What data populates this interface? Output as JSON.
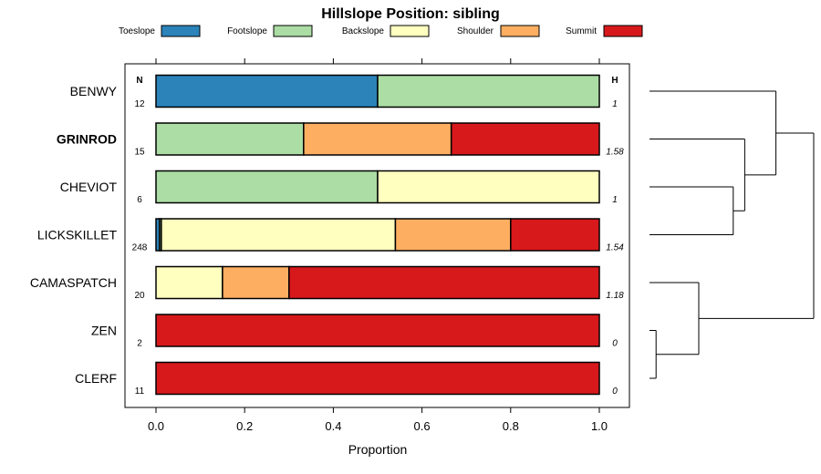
{
  "chart_data": {
    "type": "bar",
    "orientation": "horizontal",
    "stacked": true,
    "title": "Hillslope Position: sibling",
    "xlabel": "Proportion",
    "xlim": [
      0,
      1
    ],
    "x_ticks": [
      "0.0",
      "0.2",
      "0.4",
      "0.6",
      "0.8",
      "1.0"
    ],
    "n_header": "N",
    "h_header": "H",
    "legend_position": "top",
    "series": [
      {
        "name": "Toeslope",
        "color": "#2B83BA"
      },
      {
        "name": "Footslope",
        "color": "#ABDDA4"
      },
      {
        "name": "Backslope",
        "color": "#FFFFBF"
      },
      {
        "name": "Shoulder",
        "color": "#FDAE61"
      },
      {
        "name": "Summit",
        "color": "#D7191C"
      }
    ],
    "categories": [
      {
        "label": "BENWY",
        "bold": false,
        "n": "12",
        "h": "1",
        "values": [
          0.5,
          0.5,
          0,
          0,
          0
        ]
      },
      {
        "label": "GRINROD",
        "bold": true,
        "n": "15",
        "h": "1.58",
        "values": [
          0,
          0.333,
          0,
          0.333,
          0.334
        ]
      },
      {
        "label": "CHEVIOT",
        "bold": false,
        "n": "6",
        "h": "1",
        "values": [
          0,
          0.5,
          0.5,
          0,
          0
        ]
      },
      {
        "label": "LICKSKILLET",
        "bold": false,
        "n": "248",
        "h": "1.54",
        "values": [
          0.008,
          0.004,
          0.528,
          0.26,
          0.2
        ]
      },
      {
        "label": "CAMASPATCH",
        "bold": false,
        "n": "20",
        "h": "1.18",
        "values": [
          0,
          0,
          0.15,
          0.15,
          0.7
        ]
      },
      {
        "label": "ZEN",
        "bold": false,
        "n": "2",
        "h": "0",
        "values": [
          0,
          0,
          0,
          0,
          1
        ]
      },
      {
        "label": "CLERF",
        "bold": false,
        "n": "11",
        "h": "0",
        "values": [
          0,
          0,
          0,
          0,
          1
        ]
      }
    ],
    "dendrogram": {
      "merges": [
        {
          "left": "ZEN",
          "right": "CLERF",
          "height": 0.04
        },
        {
          "left": "CAMASPATCH",
          "right": "ZEN+CLERF",
          "height": 0.3
        },
        {
          "left": "CHEVIOT",
          "right": "LICKSKILLET",
          "height": 0.51
        },
        {
          "left": "GRINROD",
          "right": "CHEVIOT+LICKSKILLET",
          "height": 0.58
        },
        {
          "left": "BENWY",
          "right": "GRINROD+CHEVIOT+LICKSKILLET",
          "height": 0.77
        },
        {
          "left": "BENWY+GRINROD+CHEVIOT+LICKSKILLET",
          "right": "CAMASPATCH+ZEN+CLERF",
          "height": 1.0
        }
      ]
    }
  }
}
